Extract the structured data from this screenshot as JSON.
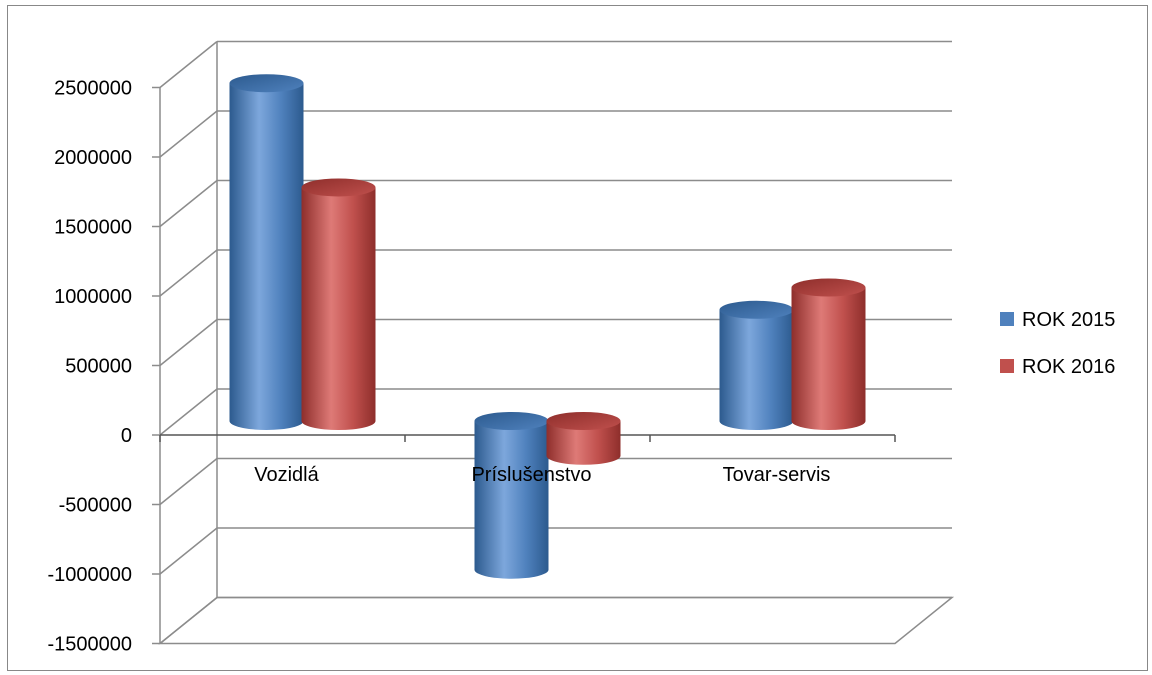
{
  "chart_data": {
    "type": "bar",
    "style": "3d-cylinder",
    "categories": [
      "Vozidlá",
      "Príslušenstvo",
      "Tovar-servis"
    ],
    "series": [
      {
        "name": "ROK 2015",
        "values": [
          2430000,
          -1070000,
          800000
        ],
        "color": "#4F81BD"
      },
      {
        "name": "ROK 2016",
        "values": [
          1680000,
          -250000,
          960000
        ],
        "color": "#C0504D"
      }
    ],
    "y_ticks": [
      "2500000",
      "2000000",
      "1500000",
      "1000000",
      "500000",
      "0",
      "-500000",
      "-1000000",
      "-1500000"
    ],
    "ylim": [
      -1500000,
      2500000
    ],
    "title": "",
    "xlabel": "",
    "ylabel": "",
    "grid": true,
    "legend_position": "right"
  }
}
